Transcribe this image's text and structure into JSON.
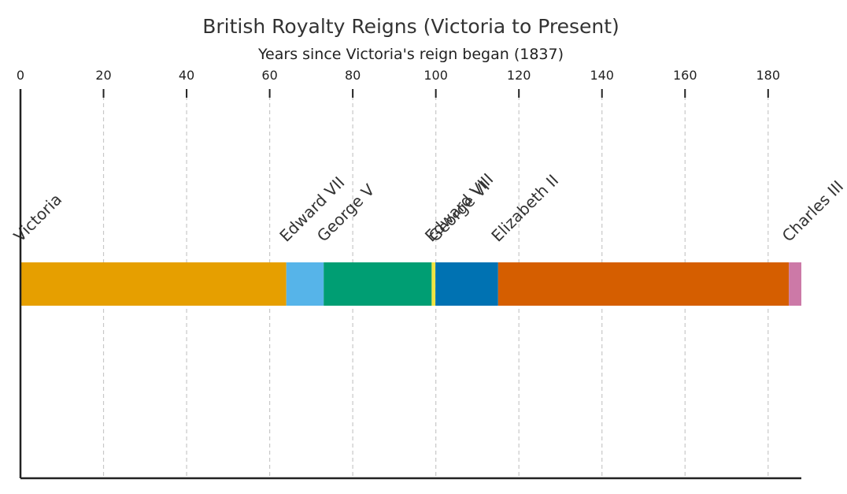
{
  "chart_data": {
    "type": "bar",
    "orientation": "horizontal-stacked-timeline",
    "title": "British Royalty Reigns (Victoria to Present)",
    "xlabel": "Years since Victoria's reign began (1837)",
    "ylabel": "",
    "xlim": [
      0,
      188
    ],
    "xticks": [
      0,
      20,
      40,
      60,
      80,
      100,
      120,
      140,
      160,
      180
    ],
    "x_axis_position": "top",
    "grid": "vertical-dashed",
    "series": [
      {
        "name": "Victoria",
        "start": 0,
        "end": 64,
        "color": "#E69F00"
      },
      {
        "name": "Edward VII",
        "start": 64,
        "end": 73,
        "color": "#56B4E9"
      },
      {
        "name": "George V",
        "start": 73,
        "end": 99,
        "color": "#009E73"
      },
      {
        "name": "Edward VIII",
        "start": 99,
        "end": 99.9,
        "color": "#F0E442"
      },
      {
        "name": "George VI",
        "start": 99.9,
        "end": 115,
        "color": "#0072B2"
      },
      {
        "name": "Elizabeth II",
        "start": 115,
        "end": 185,
        "color": "#D55E00"
      },
      {
        "name": "Charles III",
        "start": 185,
        "end": 188,
        "color": "#CC79A7"
      }
    ]
  }
}
